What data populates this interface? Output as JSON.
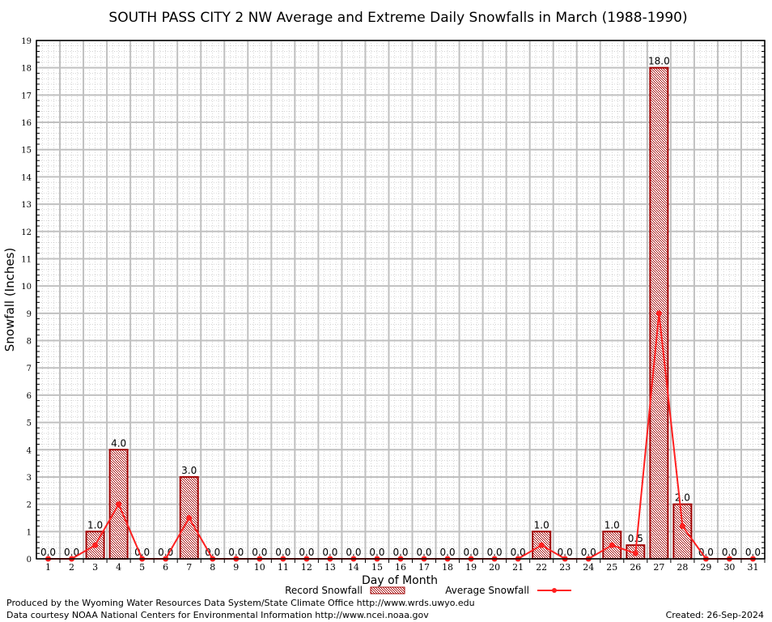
{
  "chart_data": {
    "type": "bar",
    "title": "SOUTH PASS CITY 2 NW Average and Extreme Daily Snowfalls in March (1988-1990)",
    "xlabel": "Day of Month",
    "ylabel": "Snowfall (Inches)",
    "ylim": [
      0,
      19
    ],
    "grid": true,
    "legend_placement": "bottom",
    "categories": [
      "1",
      "2",
      "3",
      "4",
      "5",
      "6",
      "7",
      "8",
      "9",
      "10",
      "11",
      "12",
      "13",
      "14",
      "15",
      "16",
      "17",
      "18",
      "19",
      "20",
      "21",
      "22",
      "23",
      "24",
      "25",
      "26",
      "27",
      "28",
      "29",
      "30",
      "31"
    ],
    "series": [
      {
        "name": "Record Snowfall",
        "type": "bar",
        "color": "#a00000",
        "values": [
          0,
          0,
          1.0,
          4.0,
          0,
          0,
          3.0,
          0,
          0,
          0,
          0,
          0,
          0,
          0,
          0,
          0,
          0,
          0,
          0,
          0,
          0,
          1.0,
          0,
          0,
          1.0,
          0.5,
          18.0,
          2.0,
          0,
          0,
          0
        ],
        "labels": [
          "0.0",
          "0.0",
          "1.0",
          "4.0",
          "0.0",
          "0.0",
          "3.0",
          "0.0",
          "0.0",
          "0.0",
          "0.0",
          "0.0",
          "0.0",
          "0.0",
          "0.0",
          "0.0",
          "0.0",
          "0.0",
          "0.0",
          "0.0",
          "0.0",
          "1.0",
          "0.0",
          "0.0",
          "1.0",
          "0.5",
          "18.0",
          "2.0",
          "0.0",
          "0.0",
          "0.0"
        ]
      },
      {
        "name": "Average Snowfall",
        "type": "line",
        "color": "#ff2020",
        "values": [
          0,
          0,
          0.5,
          2.0,
          0,
          0,
          1.5,
          0,
          0,
          0,
          0,
          0,
          0,
          0,
          0,
          0,
          0,
          0,
          0,
          0,
          0,
          0.5,
          0,
          0,
          0.5,
          0.2,
          9.0,
          1.2,
          0,
          0,
          0
        ]
      }
    ],
    "yticks": [
      "0",
      "1",
      "2",
      "3",
      "4",
      "5",
      "6",
      "7",
      "8",
      "9",
      "10",
      "11",
      "12",
      "13",
      "14",
      "15",
      "16",
      "17",
      "18",
      "19"
    ]
  },
  "footer": {
    "produced": "Produced by the Wyoming Water Resources Data System/State Climate Office http://www.wrds.uwyo.edu",
    "courtesy": "Data courtesy NOAA National Centers for Environmental Information http://www.ncei.noaa.gov",
    "created": "Created: 26-Sep-2024"
  }
}
